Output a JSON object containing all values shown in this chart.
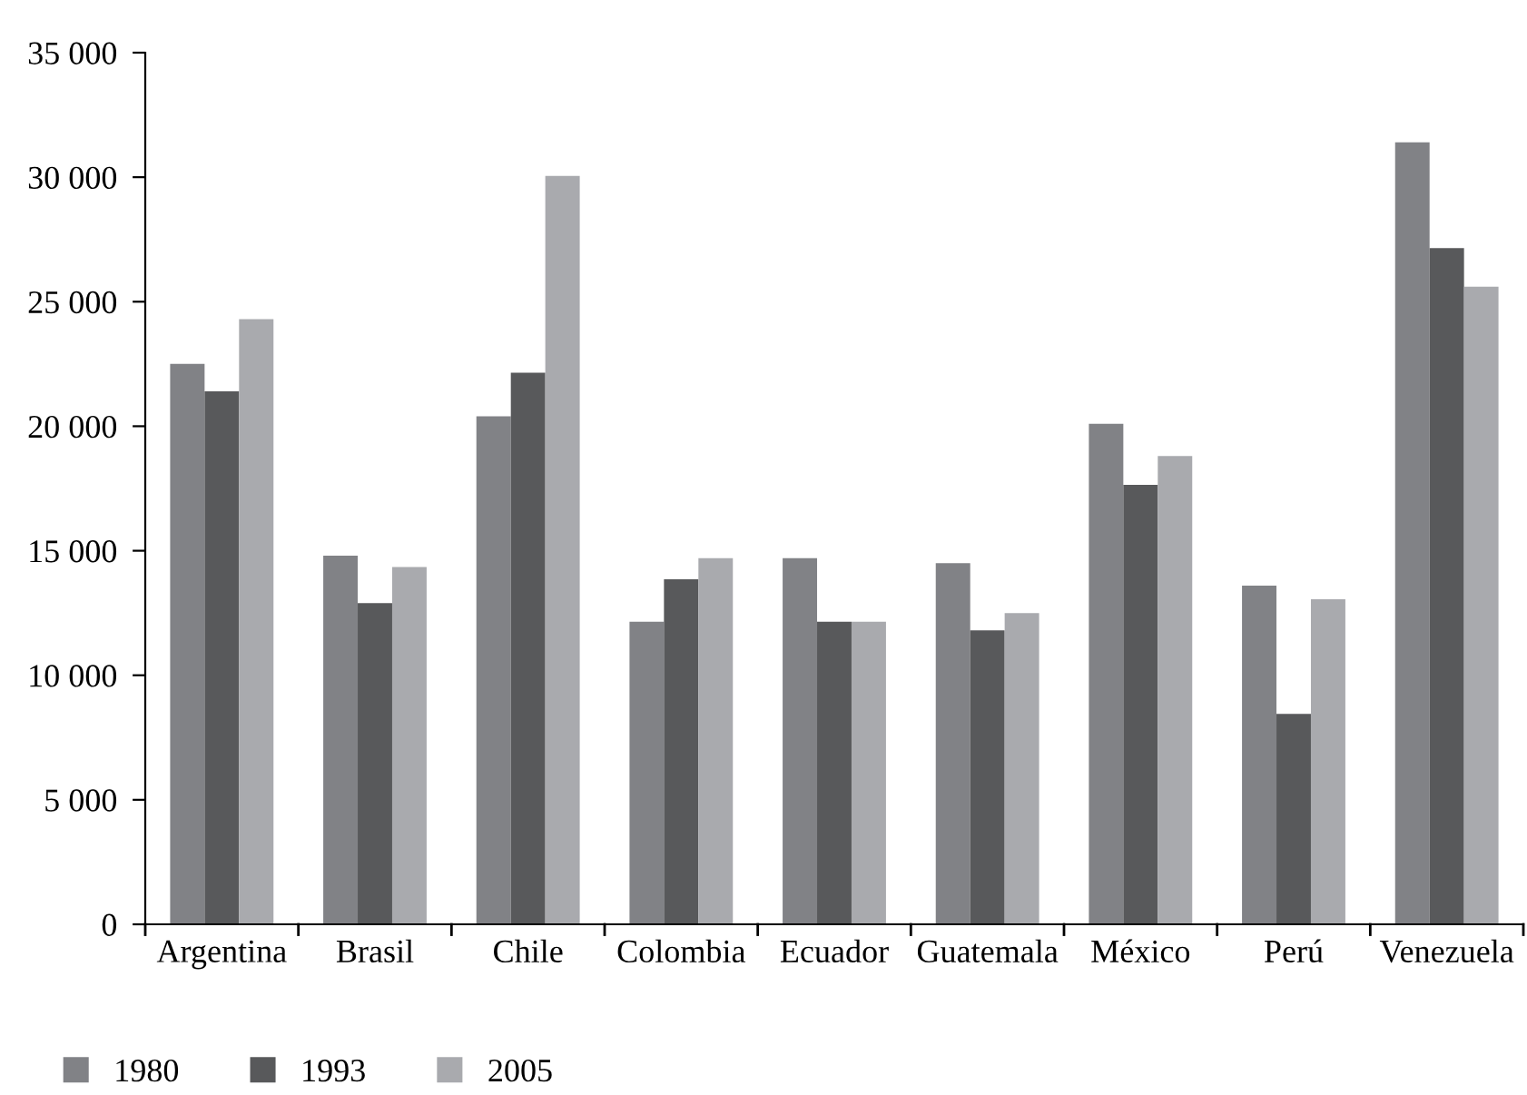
{
  "chart_data": {
    "type": "bar",
    "categories": [
      "Argentina",
      "Brasil",
      "Chile",
      "Colombia",
      "Ecuador",
      "Guatemala",
      "México",
      "Perú",
      "Venezuela"
    ],
    "series": [
      {
        "name": "1980",
        "color": "#818286",
        "values": [
          22500,
          14800,
          20400,
          12150,
          14700,
          14500,
          20100,
          13600,
          31400
        ]
      },
      {
        "name": "1993",
        "color": "#58595b",
        "values": [
          21400,
          12900,
          22150,
          13850,
          12150,
          11800,
          17650,
          8450,
          27150
        ]
      },
      {
        "name": "2005",
        "color": "#a9aaae",
        "values": [
          24300,
          14350,
          30050,
          14700,
          12150,
          12500,
          18800,
          13050,
          25600
        ]
      }
    ],
    "ylim": [
      0,
      35000
    ],
    "yticks": [
      {
        "value": 0,
        "label": "0"
      },
      {
        "value": 5000,
        "label": "5 000"
      },
      {
        "value": 10000,
        "label": "10 000"
      },
      {
        "value": 15000,
        "label": "15 000"
      },
      {
        "value": 20000,
        "label": "20 000"
      },
      {
        "value": 25000,
        "label": "25 000"
      },
      {
        "value": 30000,
        "label": "30 000"
      },
      {
        "value": 35000,
        "label": "35 000"
      }
    ],
    "grid": false,
    "legend": "bottom left"
  }
}
